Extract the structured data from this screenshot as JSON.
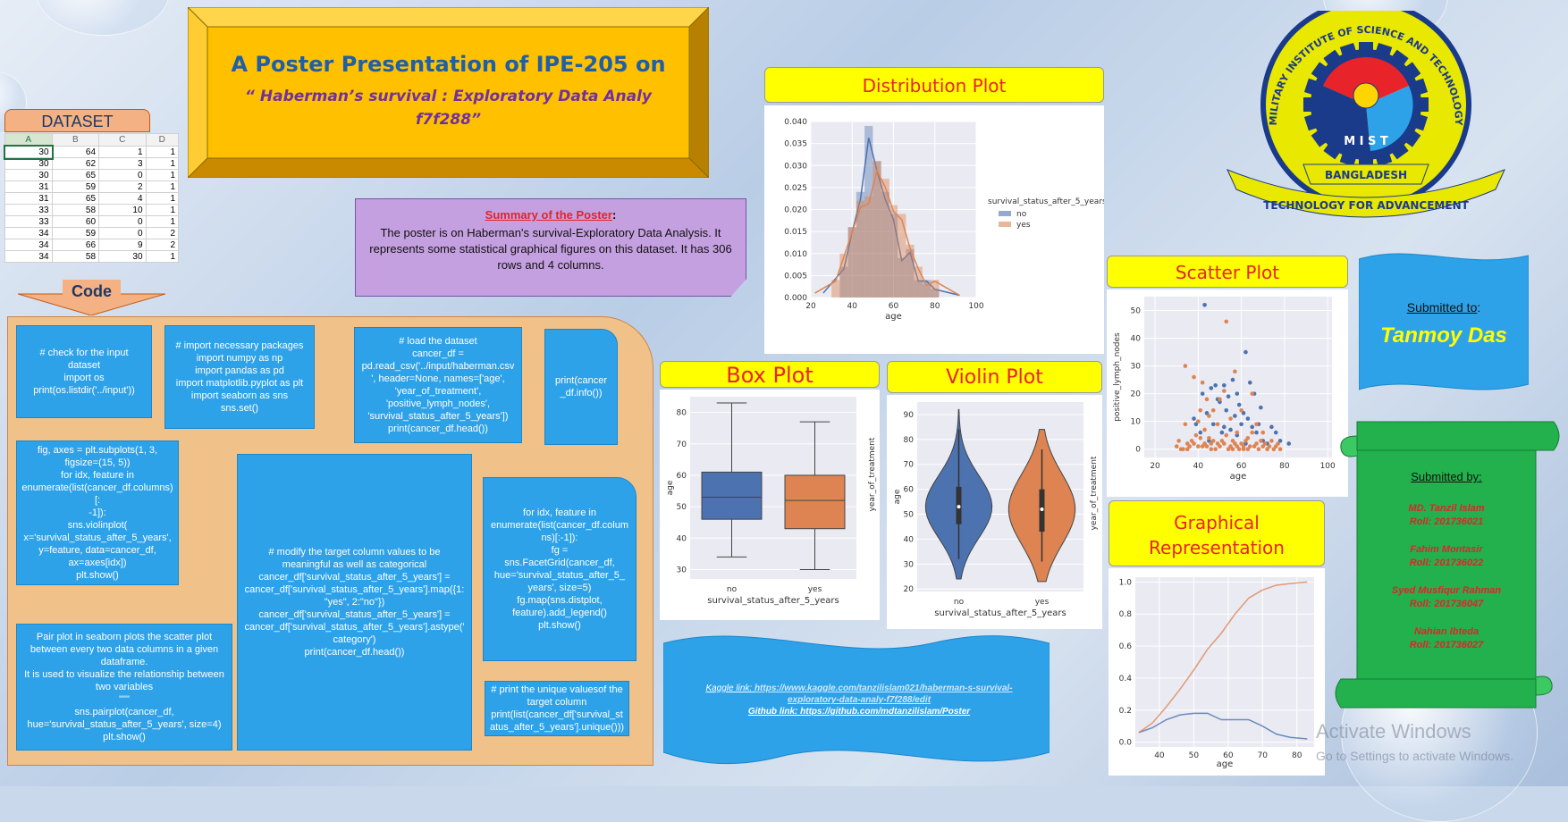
{
  "title": {
    "line1": "A Poster Presentation of IPE-205 on",
    "line2": "“ Haberman’s survival : Exploratory Data Analy",
    "line3": "f7f288”"
  },
  "dataset": {
    "label": "DATASET",
    "headers": [
      "A",
      "B",
      "C",
      "D"
    ],
    "rows": [
      [
        "30",
        "64",
        "1",
        "1"
      ],
      [
        "30",
        "62",
        "3",
        "1"
      ],
      [
        "30",
        "65",
        "0",
        "1"
      ],
      [
        "31",
        "59",
        "2",
        "1"
      ],
      [
        "31",
        "65",
        "4",
        "1"
      ],
      [
        "33",
        "58",
        "10",
        "1"
      ],
      [
        "33",
        "60",
        "0",
        "1"
      ],
      [
        "34",
        "59",
        "0",
        "2"
      ],
      [
        "34",
        "66",
        "9",
        "2"
      ],
      [
        "34",
        "58",
        "30",
        "1"
      ]
    ]
  },
  "code_label": "Code",
  "summary": {
    "heading": "Summary of the Poster",
    "colon": ":",
    "body": "The poster is on Haberman's survival-Exploratory Data Analysis. It represents some statistical graphical figures on this dataset. It has 306 rows and 4 columns."
  },
  "code": {
    "c1": "# check for the input\ndataset\nimport os\nprint(os.listdir('../input'))",
    "c2": "# import necessary packages\nimport numpy as np\nimport pandas as pd\nimport matplotlib.pyplot  as plt\nimport seaborn as sns\nsns.set()",
    "c3": "# load the dataset\ncancer_df =\npd.read_csv('../input/haberman.csv\n', header=None, names=['age',\n'year_of_treatment',\n'positive_lymph_nodes',\n'survival_status_after_5_years'])\nprint(cancer_df.head())",
    "c4": "print(cancer\n_df.info())",
    "c5": "fig, axes = plt.subplots(1, 3,\nfigsize=(15, 5))\nfor idx, feature in\nenumerate(list(cancer_df.columns)[:\n-1]):\nsns.violinplot(\nx='survival_status_after_5_years',\ny=feature, data=cancer_df,\nax=axes[idx])\nplt.show()",
    "c6": "# modify the target column values to be\nmeaningful as well as categorical\ncancer_df['survival_status_after_5_years'] =\ncancer_df['survival_status_after_5_years'].map({1:\n\"yes\", 2:\"no\"})\ncancer_df['survival_status_after_5_years'] =\ncancer_df['survival_status_after_5_years'].astype('\ncategory')\nprint(cancer_df.head())",
    "c7": "for idx, feature in\nenumerate(list(cancer_df.colum\nns)[:-1]):\nfg =\nsns.FacetGrid(cancer_df,\nhue='survival_status_after_5_\nyears', size=5)\nfg.map(sns.distplot,\nfeature).add_legend()\nplt.show()",
    "c8": "Pair plot in seaborn plots the scatter plot\nbetween every two data columns in a given\ndataframe.\nIt is used to visualize the relationship between\ntwo variables\n\"\"\"\nsns.pairplot(cancer_df,\nhue='survival_status_after_5_years', size=4)\nplt.show()",
    "c9": "# print the unique valuesof the\ntarget column\nprint(list(cancer_df['survival_st\natus_after_5_years'].unique()))"
  },
  "headings": {
    "dist": "Distribution Plot",
    "scatter": "Scatter Plot",
    "box": "Box Plot",
    "violin": "Violin Plot",
    "graph1": "Graphical",
    "graph2": "Representation"
  },
  "links": {
    "kaggle_label": "Kaggle link: ",
    "kaggle_url": "https://www.kaggle.com/tanzilislam021/haberman-s-survival-exploratory-data-analy-f7f288/edit",
    "github_label": "Github link: ",
    "github_url": "https://github.com/mdtanzilislam/Poster"
  },
  "submitted_to": {
    "label": "Submitted to",
    "colon": ":",
    "name": "Tanmoy Das"
  },
  "submitted_by": {
    "label": "Submitted by:",
    "people": [
      {
        "name": "MD. Tanzil Islam",
        "roll": "Roll: 201736021"
      },
      {
        "name": "Fahim Montasir",
        "roll": "Roll: 201736022"
      },
      {
        "name": "Syed Musfiqur Rahman",
        "roll": "Roll: 201736047"
      },
      {
        "name": "Nahian Ibteda",
        "roll": "Roll: 201736027"
      }
    ]
  },
  "logo": {
    "top": "MILITARY INSTITUTE OF SCIENCE AND TECHNOLOGY",
    "mid": "M I S T",
    "country": "BANGLADESH",
    "motto": "TECHNOLOGY FOR ADVANCEMENT"
  },
  "watermark": {
    "line1": "Activate Windows",
    "line2": "Go to Settings to activate Windows."
  },
  "colors": {
    "blue": "#4c72b0",
    "orange": "#dd8452",
    "yellow": "#ffff00",
    "green": "#22b14c",
    "codeblue": "#2ea2e9"
  },
  "chart_data": [
    {
      "type": "histogram",
      "name": "distribution",
      "xlabel": "age",
      "xlim": [
        20,
        100
      ],
      "ylim": [
        0,
        0.04
      ],
      "yticks": [
        "0.000",
        "0.005",
        "0.010",
        "0.015",
        "0.020",
        "0.025",
        "0.030",
        "0.035",
        "0.040"
      ],
      "xticks": [
        "20",
        "40",
        "60",
        "80",
        "100"
      ],
      "legend_title": "survival_status_after_5_years",
      "series": [
        {
          "name": "no",
          "bins": [
            [
              34,
              38,
              0.007
            ],
            [
              38,
              42,
              0.016
            ],
            [
              42,
              46,
              0.024
            ],
            [
              46,
              50,
              0.039
            ],
            [
              50,
              54,
              0.031
            ],
            [
              54,
              58,
              0.024
            ],
            [
              58,
              62,
              0.019
            ],
            [
              62,
              66,
              0.009
            ],
            [
              66,
              70,
              0.011
            ],
            [
              70,
              74,
              0.004
            ],
            [
              74,
              78,
              0.004
            ],
            [
              78,
              82,
              0.002
            ]
          ]
        },
        {
          "name": "yes",
          "bins": [
            [
              30,
              34,
              0.004
            ],
            [
              34,
              38,
              0.01
            ],
            [
              38,
              42,
              0.016
            ],
            [
              42,
              46,
              0.022
            ],
            [
              46,
              50,
              0.023
            ],
            [
              50,
              54,
              0.031
            ],
            [
              54,
              58,
              0.027
            ],
            [
              58,
              62,
              0.021
            ],
            [
              62,
              66,
              0.019
            ],
            [
              66,
              70,
              0.012
            ],
            [
              70,
              74,
              0.007
            ],
            [
              74,
              78,
              0.003
            ],
            [
              78,
              82,
              0.004
            ]
          ]
        }
      ]
    },
    {
      "type": "scatter",
      "name": "scatter",
      "xlabel": "age",
      "ylabel": "positive_lymph_nodes",
      "xlim": [
        15,
        102
      ],
      "ylim": [
        -3,
        55
      ],
      "xticks": [
        "20",
        "40",
        "60",
        "80",
        "100"
      ],
      "yticks": [
        "0",
        "10",
        "20",
        "30",
        "40",
        "50"
      ],
      "series": [
        {
          "name": "no",
          "points": [
            [
              43,
              52
            ],
            [
              52,
              23
            ],
            [
              54,
              19
            ],
            [
              42,
              20
            ],
            [
              46,
              22
            ],
            [
              49,
              18
            ],
            [
              50,
              17
            ],
            [
              53,
              14
            ],
            [
              56,
              25
            ],
            [
              57,
              12
            ],
            [
              58,
              20
            ],
            [
              59,
              16
            ],
            [
              60,
              9
            ],
            [
              61,
              13
            ],
            [
              62,
              35
            ],
            [
              63,
              11
            ],
            [
              64,
              24
            ],
            [
              65,
              8
            ],
            [
              66,
              20
            ],
            [
              67,
              6
            ],
            [
              68,
              9
            ],
            [
              69,
              15
            ],
            [
              70,
              3
            ],
            [
              72,
              2
            ],
            [
              74,
              8
            ],
            [
              76,
              6
            ],
            [
              78,
              3
            ],
            [
              82,
              2
            ],
            [
              44,
              13
            ],
            [
              47,
              9
            ],
            [
              48,
              23
            ],
            [
              51,
              6
            ],
            [
              55,
              7
            ],
            [
              41,
              6
            ],
            [
              39,
              9
            ],
            [
              38,
              11
            ],
            [
              45,
              3
            ],
            [
              52,
              8
            ],
            [
              58,
              5
            ],
            [
              62,
              2
            ]
          ]
        },
        {
          "name": "yes",
          "points": [
            [
              30,
              1
            ],
            [
              31,
              3
            ],
            [
              33,
              0
            ],
            [
              34,
              9
            ],
            [
              34,
              30
            ],
            [
              35,
              2
            ],
            [
              36,
              1
            ],
            [
              37,
              3
            ],
            [
              38,
              2
            ],
            [
              38,
              26
            ],
            [
              39,
              5
            ],
            [
              40,
              1
            ],
            [
              41,
              4
            ],
            [
              41,
              14
            ],
            [
              42,
              1
            ],
            [
              42,
              24
            ],
            [
              43,
              2
            ],
            [
              43,
              7
            ],
            [
              44,
              1
            ],
            [
              45,
              12
            ],
            [
              45,
              4
            ],
            [
              46,
              2
            ],
            [
              47,
              3
            ],
            [
              47,
              14
            ],
            [
              48,
              0
            ],
            [
              49,
              9
            ],
            [
              50,
              1
            ],
            [
              50,
              18
            ],
            [
              51,
              3
            ],
            [
              52,
              2
            ],
            [
              53,
              46
            ],
            [
              53,
              5
            ],
            [
              54,
              0
            ],
            [
              55,
              1
            ],
            [
              55,
              11
            ],
            [
              56,
              3
            ],
            [
              57,
              2
            ],
            [
              58,
              1
            ],
            [
              59,
              0
            ],
            [
              60,
              2
            ],
            [
              60,
              14
            ],
            [
              61,
              1
            ],
            [
              62,
              3
            ],
            [
              63,
              0
            ],
            [
              64,
              1
            ],
            [
              65,
              6
            ],
            [
              66,
              1
            ],
            [
              67,
              2
            ],
            [
              68,
              0
            ],
            [
              69,
              3
            ],
            [
              70,
              1
            ],
            [
              71,
              2
            ],
            [
              72,
              0
            ],
            [
              73,
              1
            ],
            [
              74,
              3
            ],
            [
              75,
              0
            ],
            [
              76,
              1
            ],
            [
              77,
              2
            ],
            [
              78,
              0
            ],
            [
              65,
              20
            ],
            [
              57,
              28
            ],
            [
              52,
              21
            ],
            [
              44,
              18
            ],
            [
              40,
              10
            ],
            [
              49,
              2
            ],
            [
              56,
              0
            ],
            [
              61,
              0
            ],
            [
              35,
              0
            ],
            [
              32,
              0
            ],
            [
              46,
              0
            ],
            [
              58,
              6
            ],
            [
              63,
              4
            ],
            [
              67,
              9
            ],
            [
              70,
              6
            ]
          ]
        }
      ]
    },
    {
      "type": "box",
      "name": "box",
      "xlabel": "survival_status_after_5_years",
      "ylabel": "age",
      "ylim": [
        27,
        85
      ],
      "categories": [
        "no",
        "yes"
      ],
      "yticks": [
        "30",
        "40",
        "50",
        "60",
        "70",
        "80"
      ],
      "side_label": "year_of_treatment",
      "boxes": [
        {
          "min": 34,
          "q1": 46,
          "median": 53,
          "q3": 61,
          "max": 83
        },
        {
          "min": 30,
          "q1": 43,
          "median": 52,
          "q3": 60,
          "max": 77
        }
      ]
    },
    {
      "type": "violin",
      "name": "violin",
      "xlabel": "survival_status_after_5_years",
      "ylabel": "age",
      "ylim": [
        19,
        95
      ],
      "categories": [
        "no",
        "yes"
      ],
      "yticks": [
        "20",
        "30",
        "40",
        "50",
        "60",
        "70",
        "80",
        "90"
      ],
      "side_label": "year_of_treatment",
      "violins": [
        {
          "min": 24,
          "max": 92,
          "q1": 46,
          "median": 53,
          "q3": 61
        },
        {
          "min": 23,
          "max": 84,
          "q1": 43,
          "median": 52,
          "q3": 60
        }
      ]
    },
    {
      "type": "line",
      "name": "graphical",
      "xlabel": "age",
      "xlim": [
        33,
        85
      ],
      "ylim": [
        -0.03,
        1.03
      ],
      "xticks": [
        "40",
        "50",
        "60",
        "70",
        "80"
      ],
      "yticks": [
        "0.0",
        "0.2",
        "0.4",
        "0.6",
        "0.8",
        "1.0"
      ],
      "series": [
        {
          "name": "blue",
          "x": [
            34,
            38,
            42,
            46,
            50,
            54,
            58,
            62,
            66,
            70,
            74,
            78,
            83
          ],
          "y": [
            0.06,
            0.09,
            0.14,
            0.17,
            0.18,
            0.18,
            0.14,
            0.14,
            0.14,
            0.1,
            0.05,
            0.03,
            0.02
          ]
        },
        {
          "name": "orange",
          "x": [
            34,
            38,
            42,
            46,
            50,
            54,
            58,
            62,
            66,
            70,
            74,
            78,
            83
          ],
          "y": [
            0.06,
            0.12,
            0.22,
            0.33,
            0.45,
            0.58,
            0.68,
            0.8,
            0.9,
            0.95,
            0.98,
            0.99,
            1.0
          ]
        }
      ]
    }
  ]
}
